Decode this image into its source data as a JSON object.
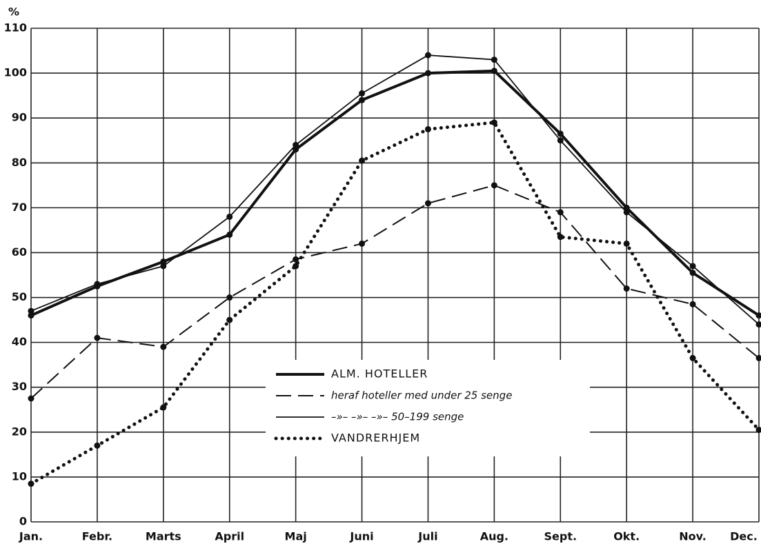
{
  "chart_data": {
    "type": "line",
    "y_label": "%",
    "categories": [
      "Jan.",
      "Febr.",
      "Marts",
      "April",
      "Maj",
      "Juni",
      "Juli",
      "Aug.",
      "Sept.",
      "Okt.",
      "Nov.",
      "Dec."
    ],
    "series": [
      {
        "name": "ALM. HOTELLER",
        "color": "#111111",
        "style": "thick",
        "values": [
          46,
          52.5,
          58,
          64,
          83,
          94,
          100,
          100.5,
          86.5,
          70,
          55.5,
          46
        ]
      },
      {
        "name": "heraf hoteller med under 25 senge",
        "color": "#111111",
        "style": "dashed",
        "values": [
          27.5,
          41,
          39,
          50,
          58.5,
          62,
          71,
          75,
          69,
          52,
          48.5,
          36.5
        ]
      },
      {
        "name": "–»–   –»–   –»–   50–199 senge",
        "color": "#111111",
        "style": "thin",
        "values": [
          47,
          53,
          57,
          68,
          84,
          95.5,
          104,
          103,
          85,
          69,
          57,
          44
        ]
      },
      {
        "name": "VANDRERHJEM",
        "color": "#111111",
        "style": "dotted",
        "values": [
          8.5,
          17,
          25.5,
          45,
          57,
          80.5,
          87.5,
          89,
          63.5,
          62,
          36.5,
          20.5
        ]
      }
    ],
    "ylim": [
      0,
      110
    ],
    "yticks": [
      0,
      10,
      20,
      30,
      40,
      50,
      60,
      70,
      80,
      90,
      100,
      110
    ],
    "grid": true
  }
}
